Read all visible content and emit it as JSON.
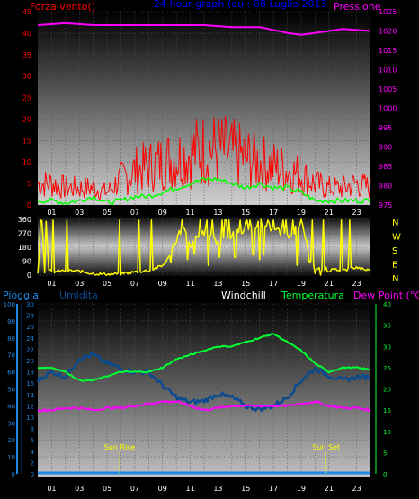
{
  "header": {
    "left": "Forza vento()",
    "center": "24 hour graph (du : 08 Luglio 2013",
    "right": "Pressione"
  },
  "colors": {
    "background": "#000000",
    "wind": "#ff0000",
    "gust": "#00ff00",
    "pressure": "#ff00ff",
    "direction": "#ffff00",
    "humidity": "#0b4a8f",
    "temperature": "#00ff33",
    "dewpoint": "#ff00ff",
    "title": "#0000ff",
    "rain": "#1e88e5",
    "windchill": "#ffffff",
    "sunmarker": "#ffff00"
  },
  "panel2": {
    "directions": [
      "N",
      "W",
      "S",
      "E",
      "N"
    ]
  },
  "panel3": {
    "labels": {
      "rain": "Pioggia",
      "humidity": "Umidita",
      "windchill": "Windchill",
      "temperature": "Temperatura",
      "dewpoint": "Dew Point (°C)"
    },
    "sunrise": "Sun Rise",
    "sunset": "Sun Set"
  },
  "chart_data": [
    {
      "type": "line",
      "x_ticks": [
        "01",
        "03",
        "05",
        "07",
        "09",
        "11",
        "13",
        "15",
        "17",
        "19",
        "21",
        "23"
      ],
      "y_left_ticks": [
        "0",
        "5",
        "10",
        "15",
        "20",
        "25",
        "30",
        "35",
        "40",
        "45"
      ],
      "y_right_ticks": [
        "975",
        "980",
        "985",
        "990",
        "995",
        "1000",
        "1005",
        "1010",
        "1015",
        "1020",
        "1025"
      ],
      "ylim_left": [
        0,
        45
      ],
      "ylim_right": [
        975,
        1025
      ],
      "series": [
        {
          "name": "Forza vento",
          "x": [
            0,
            1,
            2,
            3,
            4,
            5,
            6,
            7,
            8,
            9,
            10,
            11,
            12,
            13,
            14,
            15,
            16,
            17,
            18,
            19,
            20,
            21,
            22,
            23,
            24
          ],
          "values": [
            5,
            5,
            4,
            4,
            4,
            3,
            6,
            8,
            9,
            10,
            11,
            12,
            13,
            13,
            12,
            11,
            10,
            9,
            8,
            7,
            5,
            4,
            4,
            5,
            4
          ]
        },
        {
          "name": "Raffica",
          "x": [
            0,
            1,
            2,
            3,
            4,
            5,
            6,
            7,
            8,
            9,
            10,
            11,
            12,
            13,
            14,
            15,
            16,
            17,
            18,
            19,
            20,
            21,
            22,
            23,
            24
          ],
          "values": [
            1,
            1,
            0.5,
            1,
            2,
            0.5,
            1,
            2,
            2,
            3,
            4,
            5,
            6,
            6,
            5,
            4,
            5,
            4,
            4,
            3,
            1,
            1,
            1,
            1,
            1
          ]
        },
        {
          "name": "Pressione",
          "x": [
            0,
            2,
            4,
            6,
            8,
            10,
            12,
            14,
            16,
            18,
            19,
            20,
            22,
            24
          ],
          "values": [
            1021.5,
            1022,
            1021.5,
            1021.5,
            1021.5,
            1021.5,
            1021.5,
            1021,
            1021,
            1019.5,
            1019,
            1019.5,
            1020.5,
            1020
          ]
        }
      ]
    },
    {
      "type": "line",
      "x_ticks": [
        "01",
        "03",
        "05",
        "07",
        "09",
        "11",
        "13",
        "15",
        "17",
        "19",
        "21",
        "23"
      ],
      "y_ticks": [
        "0",
        "90",
        "180",
        "270",
        "360"
      ],
      "ylim": [
        0,
        360
      ],
      "series": [
        {
          "name": "Direzione",
          "x": [
            0,
            0.3,
            0.5,
            0.6,
            0.8,
            1,
            2,
            3,
            4,
            5,
            6,
            7,
            8,
            9,
            9.5,
            10,
            10.5,
            11,
            12,
            13,
            14,
            15,
            16,
            17,
            18,
            19,
            20,
            21,
            21.5,
            22,
            23,
            24
          ],
          "values": [
            20,
            355,
            20,
            355,
            30,
            20,
            30,
            25,
            10,
            5,
            10,
            20,
            30,
            60,
            120,
            240,
            300,
            200,
            280,
            220,
            250,
            300,
            340,
            300,
            250,
            340,
            20,
            30,
            40,
            30,
            50,
            30
          ]
        }
      ]
    },
    {
      "type": "line",
      "x_ticks": [
        "01",
        "03",
        "05",
        "07",
        "09",
        "11",
        "13",
        "15",
        "17",
        "19",
        "21",
        "23"
      ],
      "y_left_outer_ticks": [
        "0",
        "10",
        "20",
        "30",
        "40",
        "50",
        "60",
        "70",
        "80",
        "90",
        "100"
      ],
      "y_left_inner_ticks": [
        "0",
        "2",
        "4",
        "6",
        "8",
        "10",
        "12",
        "14",
        "16",
        "18",
        "20",
        "22",
        "24",
        "26",
        "28",
        "30"
      ],
      "y_right_ticks": [
        "0",
        "5",
        "10",
        "15",
        "20",
        "25",
        "30",
        "35",
        "40"
      ],
      "ylim_humidity": [
        0,
        100
      ],
      "ylim_temp": [
        0,
        40
      ],
      "ylim_rain": [
        0,
        30
      ],
      "series": [
        {
          "name": "Umidita",
          "x": [
            0,
            1,
            2,
            3,
            4,
            5,
            6,
            7,
            8,
            9,
            10,
            11,
            12,
            13,
            14,
            15,
            16,
            17,
            18,
            19,
            20,
            21,
            22,
            23,
            24
          ],
          "values": [
            55,
            60,
            57,
            68,
            70,
            65,
            62,
            60,
            60,
            52,
            45,
            42,
            43,
            47,
            45,
            40,
            38,
            40,
            45,
            55,
            62,
            58,
            55,
            57,
            57
          ]
        },
        {
          "name": "Temperatura",
          "x": [
            0,
            1,
            2,
            3,
            4,
            5,
            6,
            7,
            8,
            9,
            10,
            11,
            12,
            13,
            14,
            15,
            16,
            17,
            18,
            19,
            20,
            21,
            22,
            23,
            24
          ],
          "values": [
            25,
            25,
            24,
            22,
            22,
            23,
            24,
            24,
            24,
            25,
            27,
            28,
            29,
            30,
            30,
            31,
            32,
            33,
            31,
            29,
            26,
            24,
            25,
            25,
            24.5
          ]
        },
        {
          "name": "Dew Point",
          "x": [
            0,
            1,
            2,
            3,
            4,
            5,
            6,
            7,
            8,
            9,
            10,
            11,
            12,
            13,
            14,
            15,
            16,
            17,
            18,
            19,
            20,
            21,
            22,
            23,
            24
          ],
          "values": [
            15,
            15,
            15.5,
            15.5,
            15,
            15.5,
            15.5,
            16,
            16.5,
            17,
            17,
            16,
            15,
            15.5,
            16,
            16,
            16,
            16,
            16,
            16.5,
            17,
            16,
            15.5,
            15.5,
            15
          ]
        },
        {
          "name": "Pioggia",
          "x": [
            0,
            24
          ],
          "values": [
            0,
            0
          ]
        }
      ],
      "sunrise_hour": 5.9,
      "sunset_hour": 20.8
    }
  ]
}
